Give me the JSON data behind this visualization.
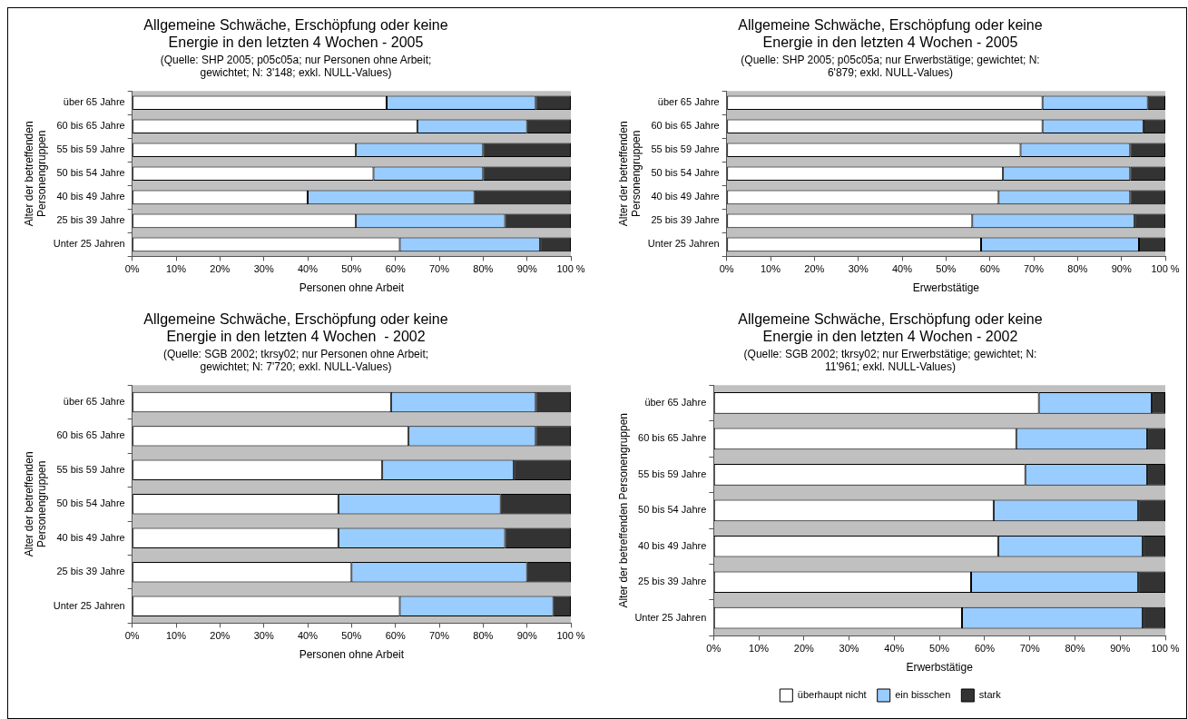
{
  "chart_data": [
    {
      "type": "bar",
      "orientation": "horizontal",
      "stacked": true,
      "title": "Allgemeine Schwäche, Erschöpfung oder keine Energie in den letzten 4 Wochen - 2005",
      "subtitle": "(Quelle: SHP 2005; p05c05a; nur Personen ohne Arbeit; gewichtet; N: 3'148; exkl. NULL-Values)",
      "xlabel": "Personen ohne Arbeit",
      "ylabel": "Alter der betreffenden Personengruppen",
      "categories": [
        "über 65 Jahre",
        "60 bis 65 Jahre",
        "55 bis 59 Jahre",
        "50 bis 54 Jahre",
        "40 bis 49 Jahre",
        "25 bis 39 Jahre",
        "Unter 25 Jahren"
      ],
      "series": [
        {
          "color": "#ffffff",
          "values": [
            58,
            65,
            51,
            55,
            40,
            51,
            61
          ]
        },
        {
          "color": "#99ccff",
          "values": [
            34,
            25,
            29,
            25,
            38,
            34,
            32
          ]
        },
        {
          "color": "#333333",
          "values": [
            8,
            10,
            20,
            20,
            22,
            15,
            7
          ]
        }
      ],
      "xlim": [
        0,
        100
      ],
      "xticks": [
        {
          "value": 0,
          "label": "0%"
        },
        {
          "value": 10,
          "label": "10%"
        },
        {
          "value": 20,
          "label": "20%"
        },
        {
          "value": 30,
          "label": "30%"
        },
        {
          "value": 40,
          "label": "40%"
        },
        {
          "value": 50,
          "label": "50%"
        },
        {
          "value": 60,
          "label": "60%"
        },
        {
          "value": 70,
          "label": "70%"
        },
        {
          "value": 80,
          "label": "80%"
        },
        {
          "value": 90,
          "label": "90%"
        },
        {
          "value": 100,
          "label": "100 %"
        }
      ],
      "grid": false,
      "legend": false
    },
    {
      "type": "bar",
      "orientation": "horizontal",
      "stacked": true,
      "title": "Allgemeine Schwäche, Erschöpfung oder keine Energie in den letzten 4 Wochen - 2005",
      "subtitle": "(Quelle: SHP 2005; p05c05a; nur Erwerbstätige; gewichtet; N: 6'879; exkl. NULL-Values)",
      "xlabel": "Erwerbstätige",
      "ylabel": "Alter der betreffenden Personengruppen",
      "categories": [
        "über 65 Jahre",
        "60 bis 65 Jahre",
        "55 bis 59 Jahre",
        "50 bis 54 Jahre",
        "40 bis 49 Jahre",
        "25 bis 39 Jahre",
        "Unter 25 Jahren"
      ],
      "series": [
        {
          "color": "#ffffff",
          "values": [
            72,
            72,
            67,
            63,
            62,
            56,
            58
          ]
        },
        {
          "color": "#99ccff",
          "values": [
            24,
            23,
            25,
            29,
            30,
            37,
            36
          ]
        },
        {
          "color": "#333333",
          "values": [
            4,
            5,
            8,
            8,
            8,
            7,
            6
          ]
        }
      ],
      "xlim": [
        0,
        100
      ],
      "xticks": [
        {
          "value": 0,
          "label": "0%"
        },
        {
          "value": 10,
          "label": "10%"
        },
        {
          "value": 20,
          "label": "20%"
        },
        {
          "value": 30,
          "label": "30%"
        },
        {
          "value": 40,
          "label": "40%"
        },
        {
          "value": 50,
          "label": "50%"
        },
        {
          "value": 60,
          "label": "60%"
        },
        {
          "value": 70,
          "label": "70%"
        },
        {
          "value": 80,
          "label": "80%"
        },
        {
          "value": 90,
          "label": "90%"
        },
        {
          "value": 100,
          "label": "100 %"
        }
      ],
      "grid": false,
      "legend": false
    },
    {
      "type": "bar",
      "orientation": "horizontal",
      "stacked": true,
      "title": "Allgemeine Schwäche, Erschöpfung oder keine Energie in den letzten 4 Wochen  - 2002",
      "subtitle": "(Quelle: SGB 2002; tkrsy02; nur Personen ohne Arbeit; gewichtet; N: 7'720; exkl. NULL-Values)",
      "xlabel": "Personen ohne Arbeit",
      "ylabel": "Alter der betreffenden Personengruppen",
      "categories": [
        "über 65 Jahre",
        "60 bis 65 Jahre",
        "55 bis 59 Jahre",
        "50 bis 54 Jahre",
        "40 bis 49 Jahre",
        "25 bis 39 Jahre",
        "Unter 25 Jahren"
      ],
      "series": [
        {
          "color": "#ffffff",
          "values": [
            59,
            63,
            57,
            47,
            47,
            50,
            61
          ]
        },
        {
          "color": "#99ccff",
          "values": [
            33,
            29,
            30,
            37,
            38,
            40,
            35
          ]
        },
        {
          "color": "#333333",
          "values": [
            8,
            8,
            13,
            16,
            15,
            10,
            4
          ]
        }
      ],
      "xlim": [
        0,
        100
      ],
      "xticks": [
        {
          "value": 0,
          "label": "0%"
        },
        {
          "value": 10,
          "label": "10%"
        },
        {
          "value": 20,
          "label": "20%"
        },
        {
          "value": 30,
          "label": "30%"
        },
        {
          "value": 40,
          "label": "40%"
        },
        {
          "value": 50,
          "label": "50%"
        },
        {
          "value": 60,
          "label": "60%"
        },
        {
          "value": 70,
          "label": "70%"
        },
        {
          "value": 80,
          "label": "80%"
        },
        {
          "value": 90,
          "label": "90%"
        },
        {
          "value": 100,
          "label": "100 %"
        }
      ],
      "grid": false,
      "legend": false
    },
    {
      "type": "bar",
      "orientation": "horizontal",
      "stacked": true,
      "title": "Allgemeine Schwäche, Erschöpfung oder keine Energie in den letzten 4 Wochen - 2002",
      "subtitle": "(Quelle: SGB 2002; tkrsy02; nur Erwerbstätige; gewichtet; N: 11'961; exkl. NULL-Values)",
      "xlabel": "Erwerbstätige",
      "ylabel": "Alter der betreffenden Personengruppen",
      "categories": [
        "über 65 Jahre",
        "60 bis 65 Jahre",
        "55 bis 59 Jahre",
        "50 bis 54 Jahre",
        "40 bis 49 Jahre",
        "25 bis 39 Jahre",
        "Unter 25 Jahren"
      ],
      "series": [
        {
          "name": "überhaupt nicht",
          "color": "#ffffff",
          "values": [
            72,
            67,
            69,
            62,
            63,
            57,
            55
          ]
        },
        {
          "name": "ein bisschen",
          "color": "#99ccff",
          "values": [
            25,
            29,
            27,
            32,
            32,
            37,
            40
          ]
        },
        {
          "name": "stark",
          "color": "#333333",
          "values": [
            3,
            4,
            4,
            6,
            5,
            6,
            5
          ]
        }
      ],
      "xlim": [
        0,
        100
      ],
      "xticks": [
        {
          "value": 0,
          "label": "0%"
        },
        {
          "value": 10,
          "label": "10%"
        },
        {
          "value": 20,
          "label": "20%"
        },
        {
          "value": 30,
          "label": "30%"
        },
        {
          "value": 40,
          "label": "40%"
        },
        {
          "value": 50,
          "label": "50%"
        },
        {
          "value": 60,
          "label": "60%"
        },
        {
          "value": 70,
          "label": "70%"
        },
        {
          "value": 80,
          "label": "80%"
        },
        {
          "value": 90,
          "label": "90%"
        },
        {
          "value": 100,
          "label": "100 %"
        }
      ],
      "grid": false,
      "legend": "bottom"
    }
  ]
}
